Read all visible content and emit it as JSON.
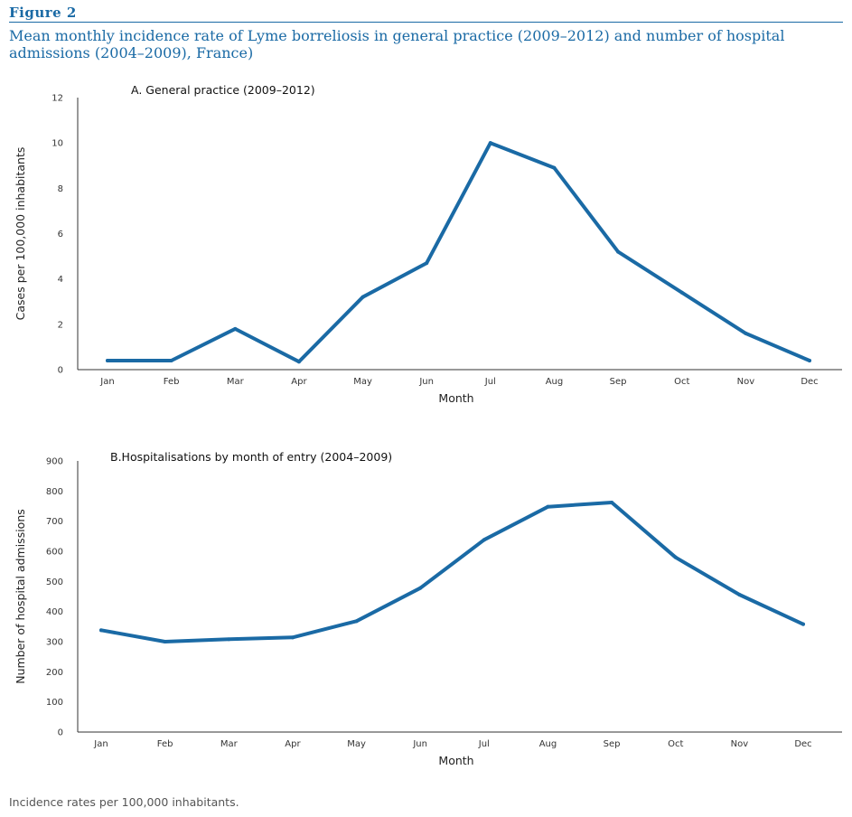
{
  "figure_label": "Figure 2",
  "caption": "Mean monthly incidence rate of Lyme borreliosis in general practice (2009–2012) and number of hospital admissions (2004–2009), France)",
  "footnote": "Incidence rates per 100,000 inhabitants.",
  "colors": {
    "accent": "#1a6aa5",
    "line": "#1a6aa5",
    "axis": "#333333"
  },
  "chart_data": [
    {
      "type": "line",
      "title": "A. General practice (2009–2012)",
      "xlabel": "Month",
      "ylabel": "Cases per 100,000 inhabitants",
      "categories": [
        "Jan",
        "Feb",
        "Mar",
        "Apr",
        "May",
        "Jun",
        "Jul",
        "Aug",
        "Sep",
        "Oct",
        "Nov",
        "Dec"
      ],
      "values": [
        0.4,
        0.4,
        1.8,
        0.35,
        3.2,
        4.7,
        10.0,
        8.9,
        5.2,
        3.4,
        1.6,
        0.4
      ],
      "yticks": [
        0,
        2,
        4,
        6,
        8,
        10,
        12
      ],
      "ylim": [
        0,
        12
      ],
      "grid": false
    },
    {
      "type": "line",
      "title": "B.Hospitalisations by month of entry (2004–2009)",
      "xlabel": "Month",
      "ylabel": "Number of hospital admissions",
      "categories": [
        "Jan",
        "Feb",
        "Mar",
        "Apr",
        "May",
        "Jun",
        "Jul",
        "Aug",
        "Sep",
        "Oct",
        "Nov",
        "Dec"
      ],
      "values": [
        338,
        300,
        308,
        314,
        368,
        478,
        638,
        748,
        762,
        580,
        456,
        358
      ],
      "yticks": [
        0,
        100,
        200,
        300,
        400,
        500,
        600,
        700,
        800,
        900
      ],
      "ylim": [
        0,
        900
      ],
      "grid": false
    }
  ]
}
